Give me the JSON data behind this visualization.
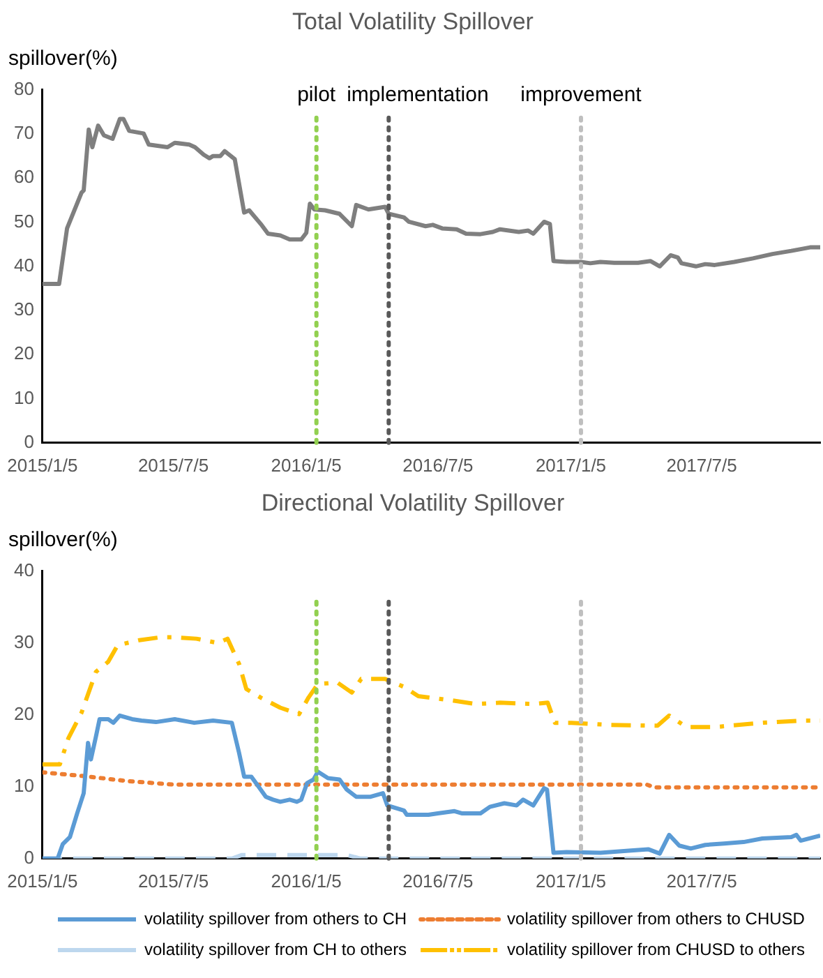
{
  "chart_data": [
    {
      "type": "line",
      "title": "Total Volatility Spillover",
      "ylabel": "spillover(%)",
      "xlim": [
        "2015-01-05",
        "2017-12-16"
      ],
      "xticks": [
        {
          "value": "2015-01-05",
          "label": "2015/1/5"
        },
        {
          "value": "2015-07-05",
          "label": "2015/7/5"
        },
        {
          "value": "2016-01-05",
          "label": "2016/1/5"
        },
        {
          "value": "2016-07-05",
          "label": "2016/7/5"
        },
        {
          "value": "2017-01-05",
          "label": "2017/1/5"
        },
        {
          "value": "2017-07-05",
          "label": "2017/7/5"
        }
      ],
      "ylim": [
        0,
        80
      ],
      "yticks": [
        0,
        10,
        20,
        30,
        40,
        50,
        60,
        70,
        80
      ],
      "grid": false,
      "legend": false,
      "marker": "none",
      "ref_lines": [
        {
          "axis": "x",
          "value": "2016-01-19",
          "label": "pilot",
          "color": "#92d050",
          "line_style": "dotted"
        },
        {
          "axis": "x",
          "value": "2016-04-28",
          "label": "implementation",
          "color": "#595959",
          "line_style": "dotted"
        },
        {
          "axis": "x",
          "value": "2017-01-19",
          "label": "improvement",
          "color": "#bfbfbf",
          "line_style": "dotted"
        }
      ],
      "series": [
        {
          "color": "#7f7f7f",
          "line_style": "solid",
          "x": [
            "2015-01-05",
            "2015-01-28",
            "2015-02-08",
            "2015-02-28",
            "2015-03-03",
            "2015-03-10",
            "2015-03-15",
            "2015-03-23",
            "2015-03-31",
            "2015-04-12",
            "2015-04-22",
            "2015-04-27",
            "2015-05-05",
            "2015-05-25",
            "2015-06-01",
            "2015-06-27",
            "2015-07-07",
            "2015-07-27",
            "2015-08-04",
            "2015-08-16",
            "2015-08-24",
            "2015-08-29",
            "2015-09-08",
            "2015-09-14",
            "2015-09-28",
            "2015-10-11",
            "2015-10-18",
            "2015-11-03",
            "2015-11-13",
            "2015-11-30",
            "2015-12-13",
            "2015-12-29",
            "2016-01-05",
            "2016-01-10",
            "2016-01-16",
            "2016-01-31",
            "2016-02-20",
            "2016-03-08",
            "2016-03-14",
            "2016-03-31",
            "2016-04-23",
            "2016-04-28",
            "2016-05-19",
            "2016-05-26",
            "2016-06-18",
            "2016-06-28",
            "2016-07-11",
            "2016-07-31",
            "2016-08-13",
            "2016-09-02",
            "2016-09-19",
            "2016-09-29",
            "2016-10-25",
            "2016-11-07",
            "2016-11-14",
            "2016-11-29",
            "2016-12-07",
            "2016-12-12",
            "2016-12-30",
            "2017-01-19",
            "2017-02-01",
            "2017-02-15",
            "2017-03-06",
            "2017-04-08",
            "2017-04-25",
            "2017-05-08",
            "2017-05-23",
            "2017-06-02",
            "2017-06-07",
            "2017-06-27",
            "2017-07-10",
            "2017-07-23",
            "2017-08-19",
            "2017-09-14",
            "2017-10-11",
            "2017-11-06",
            "2017-12-02",
            "2017-12-16"
          ],
          "values": [
            36,
            36,
            48.6,
            56.7,
            57.2,
            71,
            67,
            71.9,
            69.7,
            68.9,
            73.4,
            73.4,
            70.7,
            70.1,
            67.6,
            67,
            68,
            67.6,
            67,
            65.3,
            64.5,
            65,
            65,
            66.1,
            64.3,
            52.2,
            52.7,
            49.6,
            47.4,
            47,
            46.1,
            46.1,
            47.6,
            54.2,
            52.9,
            52.7,
            51.9,
            49.1,
            53.9,
            52.9,
            53.5,
            51.9,
            51.1,
            50.1,
            49.1,
            49.4,
            48.6,
            48.4,
            47.4,
            47.3,
            47.8,
            48.4,
            47.8,
            48.1,
            47.4,
            50.1,
            49.6,
            41.2,
            41,
            41,
            40.7,
            41,
            40.8,
            40.8,
            41.2,
            40,
            42.5,
            42,
            40.7,
            40,
            40.5,
            40.3,
            41,
            41.8,
            42.8,
            43.5,
            44.3,
            44.3
          ]
        }
      ]
    },
    {
      "type": "line",
      "title": "Directional Volatility Spillover",
      "ylabel": "spillover(%)",
      "xlim": [
        "2015-01-05",
        "2017-12-16"
      ],
      "xticks": [
        {
          "value": "2015-01-05",
          "label": "2015/1/5"
        },
        {
          "value": "2015-07-05",
          "label": "2015/7/5"
        },
        {
          "value": "2016-01-05",
          "label": "2016/1/5"
        },
        {
          "value": "2016-07-05",
          "label": "2016/7/5"
        },
        {
          "value": "2017-01-05",
          "label": "2017/1/5"
        },
        {
          "value": "2017-07-05",
          "label": "2017/7/5"
        }
      ],
      "ylim": [
        0,
        40
      ],
      "yticks": [
        0,
        10,
        20,
        30,
        40
      ],
      "grid": false,
      "legend": "bottom",
      "marker": "none",
      "ref_lines": [
        {
          "axis": "x",
          "value": "2016-01-19",
          "color": "#92d050",
          "line_style": "dotted"
        },
        {
          "axis": "x",
          "value": "2016-04-28",
          "color": "#595959",
          "line_style": "dotted"
        },
        {
          "axis": "x",
          "value": "2017-01-19",
          "color": "#bfbfbf",
          "line_style": "dotted"
        }
      ],
      "series": [
        {
          "name": "volatility spillover from others to CH",
          "color": "#5b9bd5",
          "line_style": "solid",
          "x": [
            "2015-01-05",
            "2015-01-26",
            "2015-02-02",
            "2015-02-12",
            "2015-02-22",
            "2015-03-03",
            "2015-03-09",
            "2015-03-13",
            "2015-03-20",
            "2015-03-25",
            "2015-04-06",
            "2015-04-13",
            "2015-04-22",
            "2015-05-09",
            "2015-05-22",
            "2015-06-11",
            "2015-07-07",
            "2015-08-03",
            "2015-08-29",
            "2015-09-24",
            "2015-10-04",
            "2015-10-11",
            "2015-10-21",
            "2015-10-31",
            "2015-11-10",
            "2015-11-20",
            "2015-11-30",
            "2015-12-13",
            "2015-12-23",
            "2015-12-29",
            "2016-01-06",
            "2016-01-15",
            "2016-01-21",
            "2016-02-04",
            "2016-02-20",
            "2016-03-01",
            "2016-03-14",
            "2016-04-03",
            "2016-04-20",
            "2016-04-26",
            "2016-05-19",
            "2016-05-23",
            "2016-06-22",
            "2016-07-05",
            "2016-07-28",
            "2016-08-07",
            "2016-09-02",
            "2016-09-15",
            "2016-10-05",
            "2016-10-22",
            "2016-10-31",
            "2016-11-14",
            "2016-11-29",
            "2016-12-03",
            "2016-12-12",
            "2016-12-30",
            "2017-02-15",
            "2017-03-26",
            "2017-04-22",
            "2017-05-08",
            "2017-05-21",
            "2017-06-04",
            "2017-06-20",
            "2017-07-10",
            "2017-08-05",
            "2017-09-01",
            "2017-09-27",
            "2017-11-06",
            "2017-11-13",
            "2017-11-19",
            "2017-12-16"
          ],
          "values": [
            0,
            0,
            2,
            3,
            6.3,
            9.1,
            16.1,
            13.8,
            17,
            19.4,
            19.4,
            18.9,
            19.9,
            19.4,
            19.2,
            19,
            19.4,
            18.9,
            19.2,
            18.9,
            14.7,
            11.4,
            11.4,
            10,
            8.6,
            8.2,
            7.9,
            8.2,
            7.9,
            8.2,
            10.5,
            11,
            12.1,
            11.2,
            11,
            9.6,
            8.6,
            8.6,
            9.1,
            7.4,
            6.7,
            6.1,
            6.1,
            6.3,
            6.6,
            6.3,
            6.3,
            7.2,
            7.7,
            7.4,
            8.2,
            7.4,
            9.8,
            9.6,
            0.8,
            0.9,
            0.8,
            1.1,
            1.3,
            0.7,
            3.3,
            1.8,
            1.4,
            1.9,
            2.1,
            2.3,
            2.8,
            3,
            3.3,
            2.5,
            3.2
          ]
        },
        {
          "name": "volatility spillover from others to CHUSD",
          "color": "#ed7d31",
          "line_style": "dotted",
          "x": [
            "2015-01-05",
            "2015-03-01",
            "2015-05-01",
            "2015-07-05",
            "2016-07-05",
            "2017-04-20",
            "2017-05-01",
            "2017-12-16"
          ],
          "values": [
            12,
            11.5,
            10.8,
            10.3,
            10.3,
            10.3,
            9.9,
            9.9
          ]
        },
        {
          "name": "volatility spillover from CH to others",
          "color": "#bdd7ee",
          "line_style": "dashed",
          "x": [
            "2015-01-05",
            "2015-09-24",
            "2015-10-08",
            "2016-03-01",
            "2016-03-20",
            "2017-12-16"
          ],
          "values": [
            0,
            0,
            0.5,
            0.5,
            0,
            0
          ]
        },
        {
          "name": "volatility spillover from CHUSD to others",
          "color": "#ffc000",
          "line_style": "dashdot",
          "x": [
            "2015-01-05",
            "2015-01-29",
            "2015-02-10",
            "2015-02-28",
            "2015-03-20",
            "2015-04-06",
            "2015-04-19",
            "2015-05-19",
            "2015-06-17",
            "2015-07-07",
            "2015-08-06",
            "2015-09-05",
            "2015-09-18",
            "2015-10-04",
            "2015-10-14",
            "2015-11-03",
            "2015-11-30",
            "2015-12-26",
            "2016-01-08",
            "2016-01-21",
            "2016-02-17",
            "2016-03-08",
            "2016-03-21",
            "2016-04-23",
            "2016-05-19",
            "2016-06-08",
            "2016-07-25",
            "2016-08-27",
            "2016-09-29",
            "2016-11-14",
            "2016-12-04",
            "2016-12-14",
            "2017-01-06",
            "2017-02-28",
            "2017-05-05",
            "2017-05-21",
            "2017-06-14",
            "2017-07-23",
            "2017-09-27",
            "2017-11-19",
            "2017-12-16"
          ],
          "values": [
            13.1,
            13.1,
            16.8,
            20.3,
            26,
            27.4,
            29.7,
            30.4,
            30.8,
            30.8,
            30.6,
            30,
            30.6,
            27.1,
            23.6,
            22.4,
            21,
            20.1,
            22.4,
            24.3,
            24.5,
            23.1,
            25,
            25,
            23.9,
            22.6,
            22,
            21.5,
            21.7,
            21.5,
            21.7,
            18.9,
            18.9,
            18.6,
            18.5,
            19.9,
            18.3,
            18.3,
            18.9,
            19.2,
            19.2
          ]
        }
      ]
    }
  ]
}
